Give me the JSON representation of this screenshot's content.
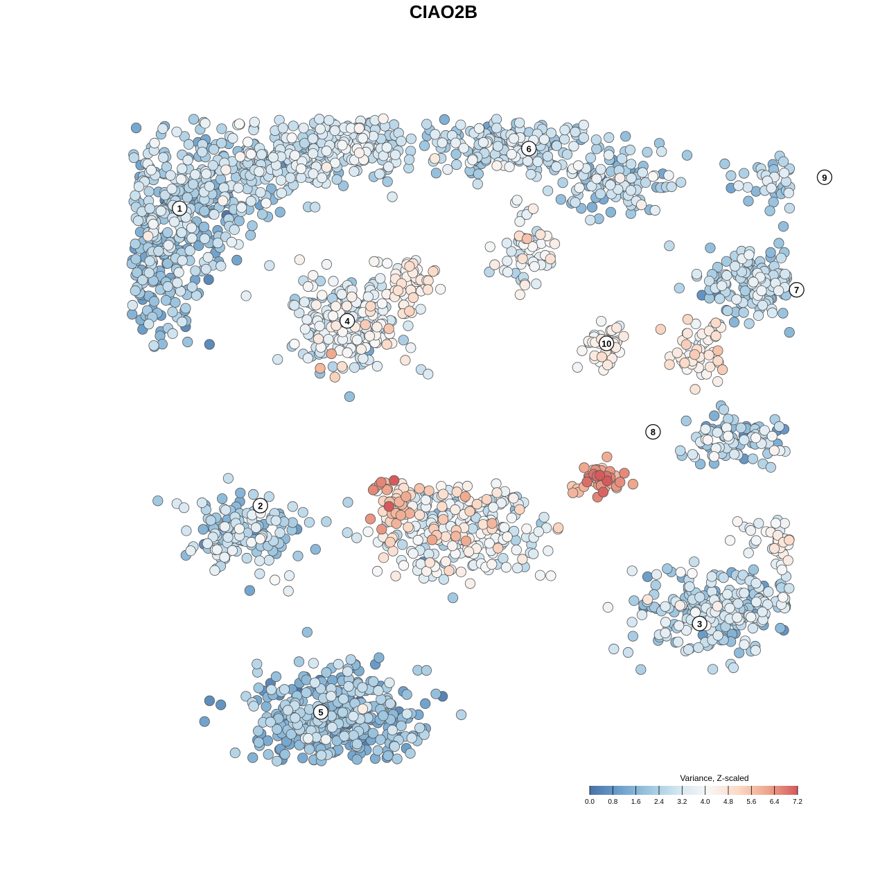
{
  "chart_data": {
    "type": "scatter",
    "title": "CIAO2B",
    "xlabel": "",
    "ylabel": "",
    "grid": false,
    "legend": {
      "title": "Variance, Z-scaled",
      "placement": "bottom-right",
      "ticks": [
        "0.0",
        "0.8",
        "1.6",
        "2.4",
        "3.2",
        "4.0",
        "4.8",
        "5.6",
        "6.4",
        "7.2"
      ],
      "range": [
        0,
        7.2
      ],
      "colors": [
        "#4a72a8",
        "#6c9fcb",
        "#9dc6e0",
        "#d4e6f1",
        "#f7f7f7",
        "#fbd9c6",
        "#eea58b",
        "#d45a5c"
      ]
    },
    "clusters": [
      {
        "label": "1",
        "x": -34.0,
        "y": 27.8,
        "mean": 2.2
      },
      {
        "label": "2",
        "x": -23.6,
        "y": -10.5,
        "mean": 2.3
      },
      {
        "label": "3",
        "x": 33.0,
        "y": -25.7,
        "mean": 2.5
      },
      {
        "label": "4",
        "x": -12.4,
        "y": 13.3,
        "mean": 3.3
      },
      {
        "label": "5",
        "x": -15.8,
        "y": -37.1,
        "mean": 1.8
      },
      {
        "label": "6",
        "x": 11.0,
        "y": 35.5,
        "mean": 2.7
      },
      {
        "label": "7",
        "x": 45.5,
        "y": 17.3,
        "mean": 2.6
      },
      {
        "label": "8",
        "x": 27.0,
        "y": -1.0,
        "mean": 2.6
      },
      {
        "label": "9",
        "x": 49.1,
        "y": 31.8,
        "mean": 2.5
      },
      {
        "label": "10",
        "x": 21.0,
        "y": 10.4,
        "mean": 4.2
      }
    ],
    "point_groups": [
      {
        "x": -34,
        "y": 28,
        "sx": 9,
        "sy": 8,
        "n": 320,
        "mean": 2.2,
        "sd": 0.8
      },
      {
        "x": -38,
        "y": 18,
        "sx": 6,
        "sy": 7,
        "n": 140,
        "mean": 1.9,
        "sd": 0.7
      },
      {
        "x": -22,
        "y": 34,
        "sx": 9,
        "sy": 5,
        "n": 180,
        "mean": 2.6,
        "sd": 0.7
      },
      {
        "x": -12,
        "y": 36,
        "sx": 7,
        "sy": 4,
        "n": 160,
        "mean": 3.0,
        "sd": 0.6
      },
      {
        "x": 8,
        "y": 36,
        "sx": 10,
        "sy": 4,
        "n": 200,
        "mean": 2.6,
        "sd": 0.7
      },
      {
        "x": 22,
        "y": 31,
        "sx": 7,
        "sy": 4,
        "n": 110,
        "mean": 2.5,
        "sd": 0.8
      },
      {
        "x": -12,
        "y": 13,
        "sx": 7,
        "sy": 6,
        "n": 220,
        "mean": 3.3,
        "sd": 0.8
      },
      {
        "x": -4,
        "y": 18,
        "sx": 3,
        "sy": 3,
        "n": 60,
        "mean": 4.3,
        "sd": 0.5
      },
      {
        "x": 11,
        "y": 22,
        "sx": 3,
        "sy": 5,
        "n": 60,
        "mean": 3.6,
        "sd": 0.6
      },
      {
        "x": 21,
        "y": 10,
        "sx": 2.5,
        "sy": 2.5,
        "n": 50,
        "mean": 4.2,
        "sd": 0.4
      },
      {
        "x": 33,
        "y": 9,
        "sx": 3,
        "sy": 4,
        "n": 50,
        "mean": 4.4,
        "sd": 0.5
      },
      {
        "x": 42,
        "y": 18,
        "sx": 9,
        "sy": 4,
        "n": 200,
        "mean": 2.6,
        "sd": 0.6
      },
      {
        "x": 48,
        "y": 31,
        "sx": 8,
        "sy": 3,
        "n": 110,
        "mean": 2.6,
        "sd": 0.6
      },
      {
        "x": 38,
        "y": -2,
        "sx": 6,
        "sy": 3,
        "n": 90,
        "mean": 2.5,
        "sd": 0.9
      },
      {
        "x": -26,
        "y": -14,
        "sx": 7,
        "sy": 5,
        "n": 140,
        "mean": 2.3,
        "sd": 0.8
      },
      {
        "x": 2,
        "y": -14,
        "sx": 10,
        "sy": 6,
        "n": 260,
        "mean": 3.6,
        "sd": 1.0
      },
      {
        "x": -6,
        "y": -10,
        "sx": 3,
        "sy": 3,
        "n": 45,
        "mean": 5.4,
        "sd": 0.8
      },
      {
        "x": 20,
        "y": -7,
        "sx": 3,
        "sy": 2,
        "n": 45,
        "mean": 6.3,
        "sd": 0.6
      },
      {
        "x": 36,
        "y": -24,
        "sx": 10,
        "sy": 5,
        "n": 260,
        "mean": 2.5,
        "sd": 0.8
      },
      {
        "x": 45,
        "y": -15,
        "sx": 5,
        "sy": 3,
        "n": 70,
        "mean": 4.0,
        "sd": 0.6
      },
      {
        "x": -14,
        "y": -38,
        "sx": 10,
        "sy": 6,
        "n": 380,
        "mean": 1.8,
        "sd": 0.7
      },
      {
        "x": -47,
        "y": -32,
        "sx": 3.5,
        "sy": 2,
        "n": 30,
        "mean": 0.6,
        "sd": 0.4
      }
    ]
  }
}
